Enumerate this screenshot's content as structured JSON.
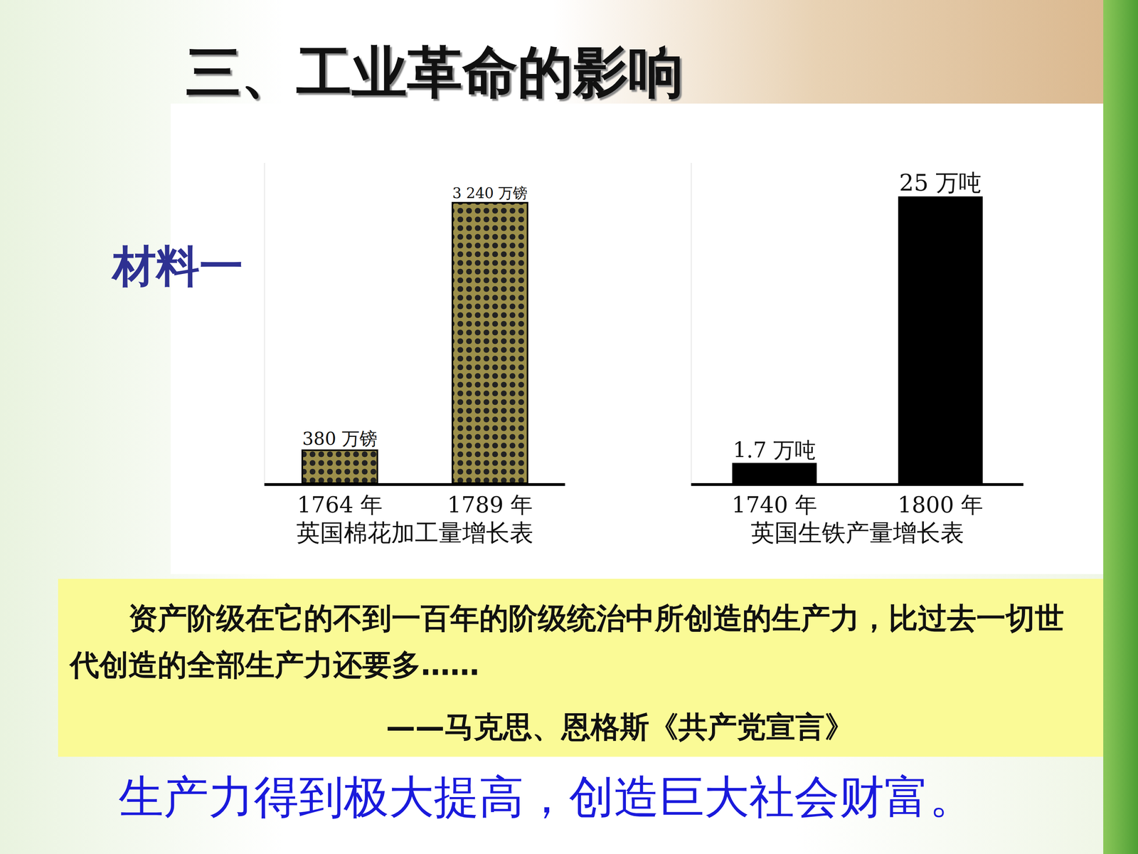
{
  "title": "三、工业革命的影响",
  "label": "材料一",
  "chart_data": [
    {
      "type": "bar",
      "title": "英国棉花加工量增长表",
      "categories": [
        "1764 年",
        "1789 年"
      ],
      "values": [
        380,
        3240
      ],
      "value_labels": [
        "380 万镑",
        "3 240 万镑"
      ],
      "data_labels": true,
      "color": "#9c8f4a",
      "ylim": [
        0,
        3700
      ],
      "tick_labels": "x",
      "grid": false
    },
    {
      "type": "bar",
      "title": "英国生铁产量增长表",
      "categories": [
        "1740 年",
        "1800 年"
      ],
      "values": [
        1.7,
        25
      ],
      "value_labels": [
        "1.7 万吨",
        "25 万吨"
      ],
      "data_labels": true,
      "color": "#000000",
      "ylim": [
        0,
        28
      ],
      "tick_labels": "x",
      "grid": false
    }
  ],
  "quote": {
    "text": "资产阶级在它的不到一百年的阶级统治中所创造的生产力，比过去一切世代创造的全部生产力还要多……",
    "source": "——马克思、恩格斯《共产党宣言》"
  },
  "conclusion": "生产力得到极大提高，创造巨大社会财富。"
}
